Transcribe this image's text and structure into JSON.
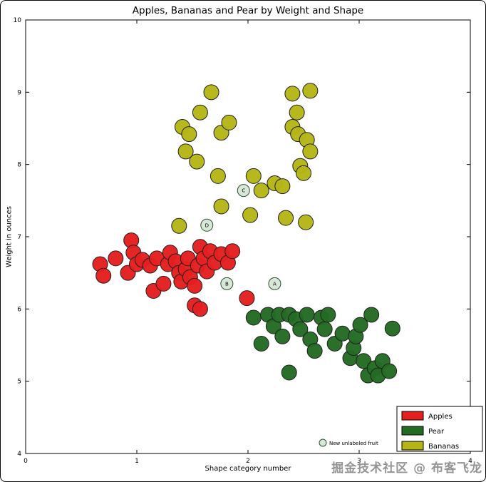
{
  "figure": {
    "watermark": "掘金技术社区 @ 布客飞龙"
  },
  "chart_data": {
    "type": "scatter",
    "title": "Apples, Bananas and Pear by Weight and Shape",
    "xlabel": "Shape category number",
    "ylabel": "Weight in ounces",
    "xlim": [
      0,
      4
    ],
    "ylim": [
      4,
      10
    ],
    "x_ticks": [
      "0",
      "1",
      "2",
      "3",
      "4"
    ],
    "y_ticks": [
      "4",
      "5",
      "6",
      "7",
      "8",
      "9",
      "10"
    ],
    "grid": false,
    "legend_position": "lower right",
    "marker_edge_color": "#202020",
    "series": [
      {
        "name": "Apples",
        "color": "#e41f1f",
        "points": [
          [
            0.67,
            6.62
          ],
          [
            0.7,
            6.46
          ],
          [
            0.81,
            6.7
          ],
          [
            0.92,
            6.5
          ],
          [
            0.95,
            6.95
          ],
          [
            0.97,
            6.78
          ],
          [
            1.0,
            6.62
          ],
          [
            1.05,
            6.68
          ],
          [
            1.12,
            6.6
          ],
          [
            1.18,
            6.7
          ],
          [
            1.15,
            6.25
          ],
          [
            1.24,
            6.35
          ],
          [
            1.28,
            6.62
          ],
          [
            1.3,
            6.78
          ],
          [
            1.35,
            6.66
          ],
          [
            1.38,
            6.5
          ],
          [
            1.4,
            6.38
          ],
          [
            1.44,
            6.55
          ],
          [
            1.46,
            6.7
          ],
          [
            1.48,
            6.44
          ],
          [
            1.52,
            6.32
          ],
          [
            1.55,
            6.6
          ],
          [
            1.57,
            6.86
          ],
          [
            1.6,
            6.7
          ],
          [
            1.63,
            6.52
          ],
          [
            1.66,
            6.8
          ],
          [
            1.7,
            6.64
          ],
          [
            1.76,
            6.76
          ],
          [
            1.82,
            6.64
          ],
          [
            1.86,
            6.8
          ],
          [
            1.52,
            6.05
          ],
          [
            1.57,
            6.0
          ],
          [
            1.99,
            6.15
          ]
        ]
      },
      {
        "name": "Pear",
        "color": "#236b23",
        "points": [
          [
            2.05,
            5.88
          ],
          [
            2.12,
            5.52
          ],
          [
            2.18,
            5.92
          ],
          [
            2.23,
            5.76
          ],
          [
            2.28,
            5.92
          ],
          [
            2.31,
            5.62
          ],
          [
            2.37,
            5.92
          ],
          [
            2.37,
            5.12
          ],
          [
            2.43,
            5.86
          ],
          [
            2.47,
            5.72
          ],
          [
            2.53,
            5.92
          ],
          [
            2.56,
            5.58
          ],
          [
            2.6,
            5.42
          ],
          [
            2.66,
            5.88
          ],
          [
            2.69,
            5.72
          ],
          [
            2.72,
            5.92
          ],
          [
            2.78,
            5.52
          ],
          [
            2.85,
            5.66
          ],
          [
            2.92,
            5.32
          ],
          [
            2.95,
            5.46
          ],
          [
            2.97,
            5.62
          ],
          [
            3.01,
            5.78
          ],
          [
            3.04,
            5.28
          ],
          [
            3.08,
            5.08
          ],
          [
            3.11,
            5.92
          ],
          [
            3.14,
            5.18
          ],
          [
            3.17,
            5.08
          ],
          [
            3.21,
            5.28
          ],
          [
            3.27,
            5.14
          ],
          [
            3.3,
            5.73
          ]
        ]
      },
      {
        "name": "Bananas",
        "color": "#b5b616",
        "points": [
          [
            1.67,
            9.0
          ],
          [
            1.57,
            8.72
          ],
          [
            1.41,
            8.52
          ],
          [
            1.47,
            8.42
          ],
          [
            1.76,
            8.44
          ],
          [
            1.83,
            8.58
          ],
          [
            1.44,
            8.18
          ],
          [
            1.54,
            8.04
          ],
          [
            1.73,
            7.84
          ],
          [
            1.76,
            7.42
          ],
          [
            2.05,
            7.84
          ],
          [
            2.12,
            7.64
          ],
          [
            2.02,
            7.3
          ],
          [
            2.24,
            7.74
          ],
          [
            2.31,
            7.7
          ],
          [
            2.4,
            8.98
          ],
          [
            2.44,
            8.72
          ],
          [
            2.4,
            8.52
          ],
          [
            2.45,
            8.42
          ],
          [
            2.56,
            9.02
          ],
          [
            2.53,
            8.34
          ],
          [
            2.56,
            8.18
          ],
          [
            2.47,
            7.98
          ],
          [
            2.5,
            7.88
          ],
          [
            2.34,
            7.26
          ],
          [
            2.52,
            7.2
          ],
          [
            1.38,
            7.15
          ]
        ]
      }
    ],
    "unlabeled_points": {
      "legend_label": "New unlabeled fruit",
      "fill": "#d8e8d8",
      "edge": "#2f4f2f",
      "points": [
        {
          "label": "A",
          "x": 2.24,
          "y": 6.35
        },
        {
          "label": "B",
          "x": 1.81,
          "y": 6.35
        },
        {
          "label": "C",
          "x": 1.96,
          "y": 7.64
        },
        {
          "label": "D",
          "x": 1.63,
          "y": 7.16
        }
      ]
    }
  }
}
